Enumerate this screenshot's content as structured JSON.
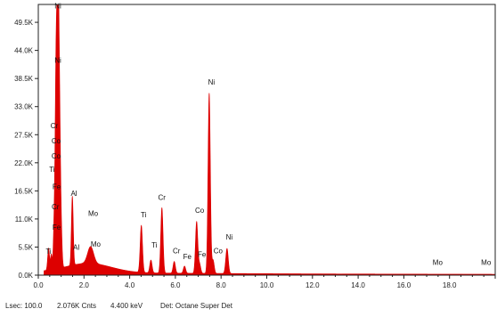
{
  "chart_data": {
    "type": "area",
    "title": "",
    "xlabel": "",
    "ylabel": "",
    "xlim": [
      0,
      20
    ],
    "ylim": [
      0,
      53000
    ],
    "x_ticks": [
      "0.0",
      "2.0",
      "4.0",
      "6.0",
      "8.0",
      "10.0",
      "12.0",
      "14.0",
      "16.0",
      "18.0"
    ],
    "y_ticks": [
      {
        "label": "0.0K",
        "value": 0
      },
      {
        "label": "5.5K",
        "value": 5500
      },
      {
        "label": "11.0K",
        "value": 11000
      },
      {
        "label": "16.5K",
        "value": 16500
      },
      {
        "label": "22.0K",
        "value": 22000
      },
      {
        "label": "27.5K",
        "value": 27500
      },
      {
        "label": "33.0K",
        "value": 33000
      },
      {
        "label": "38.5K",
        "value": 38500
      },
      {
        "label": "44.0K",
        "value": 44000
      },
      {
        "label": "49.5K",
        "value": 49500
      }
    ],
    "grid": false,
    "fill_color": "#dd0000",
    "background_level": 500,
    "peaks": [
      {
        "energy": 0.45,
        "counts": 4300,
        "width": 0.04
      },
      {
        "energy": 0.57,
        "counts": 3000,
        "width": 0.035
      },
      {
        "energy": 0.7,
        "counts": 9000,
        "width": 0.04
      },
      {
        "energy": 0.78,
        "counts": 38000,
        "width": 0.04
      },
      {
        "energy": 0.86,
        "counts": 51200,
        "width": 0.04
      },
      {
        "energy": 0.93,
        "counts": 26000,
        "width": 0.04
      },
      {
        "energy": 1.0,
        "counts": 7000,
        "width": 0.04
      },
      {
        "energy": 1.49,
        "counts": 13500,
        "width": 0.04
      },
      {
        "energy": 2.29,
        "counts": 3300,
        "width": 0.13
      },
      {
        "energy": 4.51,
        "counts": 9200,
        "width": 0.05
      },
      {
        "energy": 4.93,
        "counts": 2500,
        "width": 0.05
      },
      {
        "energy": 5.41,
        "counts": 12800,
        "width": 0.05
      },
      {
        "energy": 5.95,
        "counts": 2300,
        "width": 0.05
      },
      {
        "energy": 6.4,
        "counts": 1400,
        "width": 0.05
      },
      {
        "energy": 6.93,
        "counts": 10100,
        "width": 0.05
      },
      {
        "energy": 7.06,
        "counts": 1800,
        "width": 0.05
      },
      {
        "energy": 7.48,
        "counts": 35300,
        "width": 0.05
      },
      {
        "energy": 7.65,
        "counts": 2600,
        "width": 0.05
      },
      {
        "energy": 8.26,
        "counts": 4900,
        "width": 0.055
      }
    ],
    "annotations": [
      {
        "text": "Ni",
        "energy": 0.86,
        "counts": 52200
      },
      {
        "text": "Ni",
        "energy": 0.86,
        "counts": 41600
      },
      {
        "text": "Cr",
        "energy": 0.7,
        "counts": 28800
      },
      {
        "text": "Co",
        "energy": 0.78,
        "counts": 25800
      },
      {
        "text": "Co",
        "energy": 0.78,
        "counts": 22800
      },
      {
        "text": "Ti",
        "energy": 0.6,
        "counts": 20200
      },
      {
        "text": "Fe",
        "energy": 0.8,
        "counts": 16800
      },
      {
        "text": "Cr",
        "energy": 0.75,
        "counts": 12900
      },
      {
        "text": "Fe",
        "energy": 0.8,
        "counts": 8900
      },
      {
        "text": "Ti",
        "energy": 0.45,
        "counts": 4200
      },
      {
        "text": "Al",
        "energy": 1.56,
        "counts": 15500
      },
      {
        "text": "Al",
        "energy": 1.66,
        "counts": 5000
      },
      {
        "text": "Mo",
        "energy": 2.4,
        "counts": 11600
      },
      {
        "text": "Mo",
        "energy": 2.51,
        "counts": 5600
      },
      {
        "text": "Ti",
        "energy": 4.61,
        "counts": 11300
      },
      {
        "text": "Ti",
        "energy": 5.08,
        "counts": 5400
      },
      {
        "text": "Cr",
        "energy": 5.41,
        "counts": 14700
      },
      {
        "text": "Cr",
        "energy": 6.05,
        "counts": 4300
      },
      {
        "text": "Fe",
        "energy": 6.52,
        "counts": 3100
      },
      {
        "text": "Co",
        "energy": 7.06,
        "counts": 12200
      },
      {
        "text": "Fe",
        "energy": 7.16,
        "counts": 3600
      },
      {
        "text": "Ni",
        "energy": 7.58,
        "counts": 37300
      },
      {
        "text": "Co",
        "energy": 7.87,
        "counts": 4300
      },
      {
        "text": "Ni",
        "energy": 8.36,
        "counts": 7000
      },
      {
        "text": "Mo",
        "energy": 17.48,
        "counts": 2000
      },
      {
        "text": "Mo",
        "energy": 19.6,
        "counts": 2000
      }
    ]
  },
  "status_bar": {
    "lsec": "Lsec: 100.0",
    "counts": "2.076K Cnts",
    "energy": "4.400 keV",
    "detector": "Det: Octane Super Det"
  }
}
